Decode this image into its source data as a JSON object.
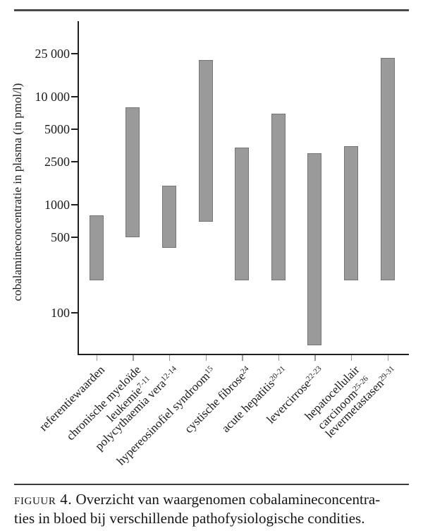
{
  "figure": {
    "caption_label": "figuur 4.",
    "caption_line1": "Overzicht van waargenomen cobalamineconcentra-",
    "caption_line2": "ties in bloed bij verschillende pathofysiologische condities."
  },
  "chart_data": {
    "type": "bar",
    "subtype": "floating-range-bars",
    "title": "",
    "xlabel": "",
    "ylabel": "cobalamineconcentratie in plasma (in pmol/l)",
    "unit": "pmol/l",
    "y_scale": "log",
    "ylim": [
      41,
      50000
    ],
    "grid": false,
    "legend": "none",
    "y_ticks": [
      {
        "value": 25000,
        "label": "25 000"
      },
      {
        "value": 10000,
        "label": "10 000"
      },
      {
        "value": 5000,
        "label": "5000"
      },
      {
        "value": 2500,
        "label": "2500"
      },
      {
        "value": 1000,
        "label": "1000"
      },
      {
        "value": 500,
        "label": "500"
      },
      {
        "value": 100,
        "label": "100"
      }
    ],
    "categories": [
      {
        "label": "referentiewaarden",
        "reference": "",
        "lines": [
          [
            "referentiewaarden",
            ""
          ]
        ],
        "range": [
          200,
          800
        ]
      },
      {
        "label": "chronische myeloide leukemie",
        "reference": "7-11",
        "lines": [
          [
            "chronische myeloïde",
            ""
          ],
          [
            "leukemie",
            "7-11"
          ]
        ],
        "range": [
          500,
          8000
        ]
      },
      {
        "label": "polycythaemia vera",
        "reference": "12-14",
        "lines": [
          [
            "polycythaemia vera",
            "12-14"
          ]
        ],
        "range": [
          400,
          1500
        ]
      },
      {
        "label": "hypereosinofiel syndroom",
        "reference": "15",
        "lines": [
          [
            "hypereosinofiel syndroom",
            "15"
          ]
        ],
        "range": [
          700,
          22000
        ]
      },
      {
        "label": "cystische fibrose",
        "reference": "24",
        "lines": [
          [
            "cystische fibrose",
            "24"
          ]
        ],
        "range": [
          200,
          3400
        ]
      },
      {
        "label": "acute hepatitis",
        "reference": "20-21",
        "lines": [
          [
            "acute hepatitis",
            "20-21"
          ]
        ],
        "range": [
          200,
          7000
        ]
      },
      {
        "label": "levercirrose",
        "reference": "22-23",
        "lines": [
          [
            "levercirrose",
            "22-23"
          ]
        ],
        "range": [
          50,
          3000
        ]
      },
      {
        "label": "hepatocellulair carcinoom",
        "reference": "25-26",
        "lines": [
          [
            "hepatocellulair",
            ""
          ],
          [
            "carcinoom",
            "25-26"
          ]
        ],
        "range": [
          200,
          3500
        ]
      },
      {
        "label": "levermetastasen",
        "reference": "29-31",
        "lines": [
          [
            "levermetastasen",
            "29-31"
          ]
        ],
        "range": [
          200,
          23000
        ]
      }
    ],
    "colors": {
      "bar_fill": "#9a9a9a",
      "bar_border": "#757575",
      "axis": "#1f1f1f",
      "text": "#1a1a1a",
      "rule": "#4a4a4a",
      "minor_tick": "#999999"
    }
  }
}
